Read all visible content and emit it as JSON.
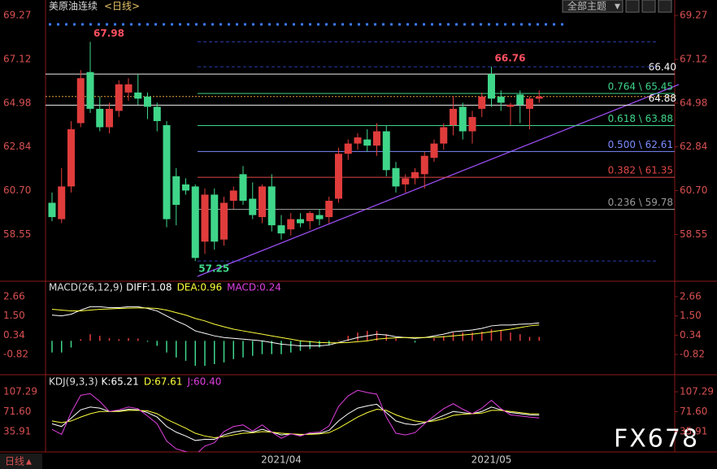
{
  "header": {
    "theme": "全部主题",
    "tab": "日线",
    "watermark": "FX678"
  },
  "chart_data": [
    {
      "type": "candlestick",
      "title": "美原油连续",
      "subtitle": "<日线>",
      "categories": [
        null,
        null,
        null,
        null,
        null,
        null,
        null,
        null,
        null,
        null,
        null,
        null,
        null,
        null,
        null,
        null,
        null,
        null,
        null,
        null,
        null,
        null,
        null,
        null,
        "2021/04",
        null,
        null,
        null,
        null,
        null,
        null,
        null,
        null,
        null,
        null,
        null,
        null,
        null,
        null,
        null,
        null,
        null,
        null,
        null,
        null,
        null,
        "2021/05",
        null,
        null,
        null,
        null,
        null
      ],
      "open": [
        60.1,
        59.3,
        60.9,
        64.0,
        66.5,
        64.7,
        63.8,
        64.6,
        65.5,
        65.5,
        65.3,
        64.8,
        63.9,
        61.4,
        61.0,
        60.9,
        58.2,
        60.5,
        58.3,
        60.2,
        61.5,
        60.3,
        59.4,
        60.9,
        59.0,
        58.8,
        59.3,
        59.2,
        59.5,
        59.4,
        60.3,
        62.5,
        63.0,
        63.2,
        62.9,
        63.6,
        61.8,
        61.0,
        61.3,
        61.5,
        62.3,
        63.0,
        63.9,
        64.8,
        63.6,
        64.7,
        66.4,
        65.3,
        64.8,
        65.4,
        64.7,
        65.2
      ],
      "high": [
        60.6,
        61.8,
        64.1,
        66.6,
        67.98,
        65.3,
        65.0,
        66.1,
        66.2,
        66.4,
        65.5,
        65.0,
        64.1,
        61.8,
        61.3,
        61.0,
        60.8,
        60.8,
        60.4,
        60.9,
        61.9,
        61.1,
        61.0,
        61.5,
        59.5,
        59.6,
        59.6,
        59.7,
        59.8,
        60.4,
        62.8,
        63.2,
        63.5,
        63.7,
        64.0,
        63.9,
        62.1,
        61.5,
        61.8,
        62.6,
        63.2,
        64.0,
        65.3,
        65.0,
        64.6,
        65.5,
        66.76,
        65.6,
        65.0,
        65.6,
        65.3,
        65.6
      ],
      "low": [
        59.2,
        59.1,
        60.6,
        63.8,
        64.5,
        63.6,
        63.5,
        64.3,
        65.1,
        64.9,
        64.2,
        63.6,
        58.9,
        59.0,
        60.5,
        57.25,
        57.6,
        57.8,
        58.0,
        59.8,
        60.0,
        59.3,
        59.1,
        58.7,
        58.3,
        58.5,
        58.9,
        58.8,
        59.0,
        59.1,
        60.1,
        62.2,
        62.7,
        62.6,
        62.4,
        61.4,
        60.6,
        60.6,
        61.0,
        60.8,
        62.1,
        62.7,
        63.4,
        63.2,
        63.0,
        64.3,
        64.8,
        64.6,
        63.9,
        64.0,
        63.7,
        65.0
      ],
      "close": [
        59.4,
        60.9,
        63.7,
        66.2,
        64.7,
        63.8,
        64.7,
        65.9,
        65.9,
        65.2,
        64.8,
        64.1,
        59.3,
        60.0,
        60.7,
        57.4,
        60.5,
        58.2,
        60.1,
        60.7,
        60.2,
        59.5,
        60.9,
        59.0,
        58.6,
        59.3,
        59.1,
        59.6,
        59.3,
        60.2,
        62.5,
        63.0,
        63.3,
        62.9,
        63.6,
        61.7,
        60.9,
        61.3,
        61.6,
        62.4,
        63.0,
        63.8,
        64.7,
        63.6,
        64.3,
        65.3,
        65.2,
        65.0,
        64.9,
        64.9,
        65.2,
        65.3
      ],
      "up_color": "#e03c3c",
      "down_color": "#3fd68a",
      "ylim": [
        56.3,
        69.55
      ],
      "yticks": [
        69.27,
        67.12,
        64.98,
        62.84,
        {
          "value": 60.7,
          "label": "60.70"
        },
        58.55
      ],
      "annotations": [
        67.98,
        66.76,
        57.25
      ],
      "levels": [
        {
          "value": 66.4,
          "label": "66.40"
        },
        {
          "value": 64.88,
          "label": "64.88"
        }
      ],
      "fibonacci": [
        {
          "value": 65.45,
          "label": "0.764 \\ 65.45",
          "color": "#3fd68a"
        },
        {
          "value": 63.88,
          "label": "0.618 \\ 63.88",
          "color": "#3fd68a"
        },
        {
          "value": 62.61,
          "label": "0.500 \\ 62.61",
          "color": "#7b8cff"
        },
        {
          "value": 61.35,
          "label": "0.382 \\ 61.35",
          "color": "#e04848"
        },
        {
          "value": 59.78,
          "label": "0.236 \\ 59.78",
          "color": "#9a9a9a"
        }
      ]
    },
    {
      "type": "macd",
      "title": "MACD(26,12,9)",
      "ylim": [
        -1.99,
        3.49
      ],
      "yticks": [
        2.66,
        {
          "value": 1.5,
          "label": "1.50"
        },
        0.34,
        -0.82
      ],
      "series": [
        {
          "label": "DIFF:1.08",
          "color": "#ffffff",
          "values": [
            1.55,
            1.5,
            1.6,
            1.85,
            2.05,
            2.05,
            2.0,
            2.0,
            2.05,
            2.05,
            1.95,
            1.8,
            1.5,
            1.2,
            0.95,
            0.6,
            0.45,
            0.3,
            0.2,
            0.15,
            0.1,
            0.05,
            0.0,
            -0.1,
            -0.2,
            -0.25,
            -0.3,
            -0.3,
            -0.3,
            -0.25,
            -0.1,
            0.05,
            0.2,
            0.3,
            0.4,
            0.35,
            0.25,
            0.2,
            0.15,
            0.2,
            0.3,
            0.4,
            0.55,
            0.6,
            0.65,
            0.75,
            0.9,
            0.95,
            0.95,
            1.0,
            1.02,
            1.08
          ]
        },
        {
          "label": "DEA:0.96",
          "color": "#ffff3c",
          "values": [
            1.9,
            1.85,
            1.8,
            1.8,
            1.85,
            1.9,
            1.92,
            1.95,
            1.97,
            1.98,
            1.98,
            1.95,
            1.85,
            1.7,
            1.55,
            1.35,
            1.2,
            1.0,
            0.85,
            0.7,
            0.6,
            0.5,
            0.4,
            0.3,
            0.2,
            0.1,
            0.0,
            -0.05,
            -0.1,
            -0.12,
            -0.12,
            -0.1,
            -0.05,
            0.0,
            0.1,
            0.15,
            0.18,
            0.2,
            0.2,
            0.2,
            0.22,
            0.25,
            0.3,
            0.35,
            0.4,
            0.47,
            0.55,
            0.63,
            0.7,
            0.8,
            0.9,
            0.96
          ]
        },
        {
          "label": "MACD:0.24",
          "color": "#e040e0",
          "type": "bar",
          "up_color": "#e03c3c",
          "down_color": "#3fd68a",
          "values": [
            -0.7,
            -0.7,
            -0.4,
            0.1,
            0.4,
            0.3,
            0.16,
            0.1,
            0.16,
            0.14,
            -0.06,
            -0.3,
            -0.7,
            -1.0,
            -1.2,
            -1.5,
            -1.5,
            -1.4,
            -1.3,
            -1.1,
            -1.0,
            -0.9,
            -0.8,
            -0.8,
            -0.8,
            -0.7,
            -0.6,
            -0.5,
            -0.4,
            -0.26,
            0.04,
            0.3,
            0.5,
            0.6,
            0.6,
            0.4,
            0.14,
            0.0,
            -0.1,
            0.0,
            0.16,
            0.3,
            0.5,
            0.5,
            0.5,
            0.56,
            0.7,
            0.64,
            0.5,
            0.4,
            0.24,
            0.24
          ]
        }
      ]
    },
    {
      "type": "kdj",
      "title": "KDJ(9,3,3)",
      "ylim": [
        -0.5,
        135
      ],
      "yticks": [
        107.29,
        {
          "value": 71.6,
          "label": "71.60"
        },
        35.91
      ],
      "series": [
        {
          "label": "K:65.21",
          "color": "#ffffff",
          "values": [
            50,
            45,
            60,
            75,
            80,
            78,
            72,
            73,
            76,
            75,
            70,
            62,
            45,
            35,
            28,
            20,
            22,
            22,
            30,
            35,
            38,
            35,
            40,
            35,
            30,
            32,
            30,
            32,
            33,
            38,
            55,
            68,
            78,
            82,
            85,
            70,
            55,
            50,
            48,
            52,
            58,
            65,
            72,
            70,
            68,
            72,
            80,
            75,
            70,
            68,
            66,
            65.21
          ]
        },
        {
          "label": "D:67.61",
          "color": "#ffff3c",
          "values": [
            55,
            52,
            55,
            62,
            68,
            72,
            72,
            72,
            74,
            74,
            73,
            68,
            58,
            50,
            42,
            33,
            28,
            25,
            27,
            30,
            33,
            34,
            36,
            35,
            33,
            32,
            31,
            31,
            32,
            34,
            42,
            52,
            62,
            70,
            76,
            74,
            66,
            60,
            55,
            53,
            55,
            59,
            65,
            67,
            68,
            69,
            74,
            74,
            72,
            70,
            68,
            67.61
          ]
        },
        {
          "label": "J:60.40",
          "color": "#e040e0",
          "values": [
            40,
            31,
            70,
            101,
            104,
            90,
            72,
            75,
            80,
            77,
            64,
            50,
            19,
            5,
            0,
            -6,
            10,
            16,
            36,
            45,
            48,
            37,
            48,
            35,
            24,
            32,
            28,
            34,
            35,
            46,
            81,
            100,
            110,
            106,
            103,
            62,
            33,
            30,
            34,
            50,
            64,
            77,
            86,
            76,
            68,
            78,
            92,
            77,
            66,
            64,
            62,
            60.4
          ]
        }
      ]
    }
  ]
}
